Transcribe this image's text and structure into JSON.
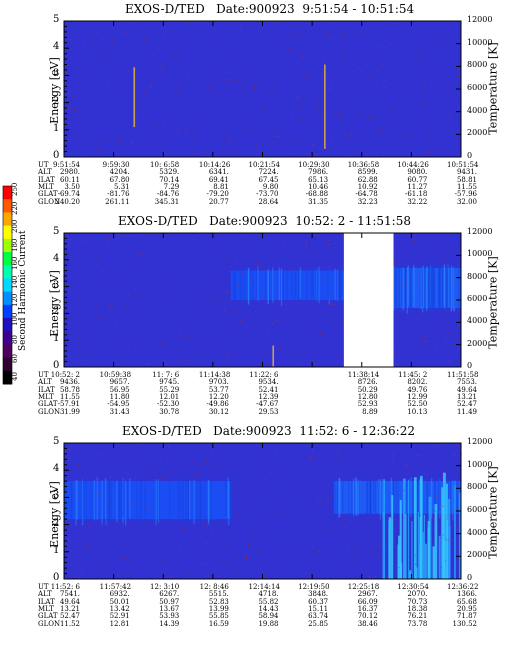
{
  "colorbar": {
    "label": "Second Harmonic Current",
    "ticks": [
      "250",
      "220",
      "200",
      "180",
      "160",
      "140",
      "120",
      "100",
      "80",
      "60",
      "40"
    ]
  },
  "panels": [
    {
      "title": "EXOS-D/TED   Date:900923  9:51:54 - 10:51:54",
      "row_labels": [
        "UT",
        "ALT",
        "ILAT",
        "MLT",
        "GLAT",
        "GLON"
      ],
      "columns": [
        [
          "9:51:54",
          "2980.",
          "60.11",
          "3.50",
          "-69.74",
          "240.20"
        ],
        [
          "9:59:30",
          "4204.",
          "67.80",
          "5.31",
          "-81.76",
          "261.11"
        ],
        [
          "10: 6:58",
          "5329.",
          "70.14",
          "7.29",
          "-84.76",
          "345.31"
        ],
        [
          "10:14:26",
          "6341.",
          "69.41",
          "8.81",
          "-79.20",
          "20.77"
        ],
        [
          "10:21:54",
          "7224.",
          "67.45",
          "9.80",
          "-73.70",
          "28.64"
        ],
        [
          "10:29:30",
          "7986.",
          "65.13",
          "10.46",
          "-68.88",
          "31.35"
        ],
        [
          "10:36:58",
          "8599.",
          "62.88",
          "10.92",
          "-64.78",
          "32.23"
        ],
        [
          "10:44:26",
          "9080.",
          "60.77",
          "11.27",
          "-61.18",
          "32.22"
        ],
        [
          "10:51:54",
          "9431.",
          "58.81",
          "11.55",
          "-57.96",
          "32.00"
        ]
      ]
    },
    {
      "title": "EXOS-D/TED   Date:900923  10:52: 2 - 11:51:58",
      "row_labels": [
        "UT",
        "ALT",
        "ILAT",
        "MLT",
        "GLAT",
        "GLON"
      ],
      "columns": [
        [
          "10:52: 2",
          "9436.",
          "58.78",
          "11.55",
          "-57.91",
          "31.99"
        ],
        [
          "10:59:38",
          "9657.",
          "56.95",
          "11.80",
          "-54.95",
          "31.43"
        ],
        [
          "11: 7: 6",
          "9745.",
          "55.29",
          "12.01",
          "-52.30",
          "30.78"
        ],
        [
          "11:14:38",
          "9703.",
          "53.77",
          "12.20",
          "-49.86",
          "30.12"
        ],
        [
          "11:22: 6",
          "9534.",
          "52.41",
          "12.39",
          "-47.67",
          "29.53"
        ],
        [
          "",
          "",
          "",
          "",
          "",
          ""
        ],
        [
          "11:38:14",
          "8726.",
          "50.29",
          "12.80",
          "52.93",
          "8.89"
        ],
        [
          "11:45: 2",
          "8202.",
          "49.76",
          "12.99",
          "52.50",
          "10.13"
        ],
        [
          "11:51:58",
          "7553.",
          "49.64",
          "13.21",
          "52.47",
          "11.49"
        ]
      ]
    },
    {
      "title": "EXOS-D/TED   Date:900923  11:52: 6 - 12:36:22",
      "row_labels": [
        "UT",
        "ALT",
        "ILAT",
        "MLT",
        "GLAT",
        "GLON"
      ],
      "columns": [
        [
          "11:52: 6",
          "7541.",
          "49.64",
          "13.21",
          "52.47",
          "11.52"
        ],
        [
          "11:57:42",
          "6932.",
          "50.01",
          "13.42",
          "52.91",
          "12.81"
        ],
        [
          "12: 3:10",
          "6267.",
          "50.97",
          "13.67",
          "53.93",
          "14.39"
        ],
        [
          "12: 8:46",
          "5515.",
          "52.83",
          "13.99",
          "55.85",
          "16.59"
        ],
        [
          "12:14:14",
          "4718.",
          "55.82",
          "14.43",
          "58.94",
          "19.88"
        ],
        [
          "12:19:50",
          "3848.",
          "60.37",
          "15.11",
          "63.74",
          "25.85"
        ],
        [
          "12:25:18",
          "2967.",
          "66.09",
          "16.37",
          "70.12",
          "38.46"
        ],
        [
          "12:30:54",
          "2070.",
          "70.73",
          "18.38",
          "76.21",
          "73.78"
        ],
        [
          "12:36:22",
          "1366.",
          "65.68",
          "20.95",
          "71.87",
          "130.52"
        ]
      ]
    }
  ],
  "chart_data": [
    {
      "type": "heatmap",
      "title": "EXOS-D/TED   Date:900923  9:51:54 - 10:51:54",
      "ylabel": "Energy [eV]",
      "y2label": "Temperature [K]",
      "ylim": [
        0,
        5
      ],
      "y2lim": [
        0,
        12000
      ],
      "yticks": [
        "0",
        "1",
        "2",
        "3",
        "4",
        "5"
      ],
      "y2ticks": [
        "0",
        "2000",
        "4000",
        "6000",
        "8000",
        "10000",
        "12000"
      ],
      "x_ut": [
        "9:51:54",
        "9:59:30",
        "10: 6:58",
        "10:14:26",
        "10:21:54",
        "10:29:30",
        "10:36:58",
        "10:44:26",
        "10:51:54"
      ],
      "colorbar_ticks": [
        "250",
        "220",
        "200",
        "180",
        "160",
        "140",
        "120",
        "100",
        "80",
        "60",
        "40"
      ],
      "background_color": "#3232d2",
      "bands": [],
      "streaks": [
        {
          "x_frac": 0.175,
          "y0": 1.1,
          "y1": 3.3
        },
        {
          "x_frac": 0.655,
          "y0": 0.3,
          "y1": 3.4
        }
      ],
      "data_gaps": [],
      "speckle_color": "#b03030"
    },
    {
      "type": "heatmap",
      "title": "EXOS-D/TED   Date:900923  10:52: 2 - 11:51:58",
      "ylabel": "Energy [eV]",
      "y2label": "Temperature [K]",
      "ylim": [
        0,
        5
      ],
      "y2lim": [
        0,
        12000
      ],
      "yticks": [
        "0",
        "1",
        "2",
        "3",
        "4",
        "5"
      ],
      "y2ticks": [
        "0",
        "2000",
        "4000",
        "6000",
        "8000",
        "10000",
        "12000"
      ],
      "x_ut": [
        "10:52: 2",
        "10:59:38",
        "11: 7: 6",
        "11:14:38",
        "11:22: 6",
        "",
        "11:38:14",
        "11:45: 2",
        "11:51:58"
      ],
      "colorbar_ticks": [
        "250",
        "220",
        "200",
        "180",
        "160",
        "140",
        "120",
        "100",
        "80",
        "60",
        "40"
      ],
      "background_color": "#3232d2",
      "bands": [
        {
          "x0_frac": 0.42,
          "x1_frac": 0.83,
          "y_lo": 2.5,
          "y_hi": 3.6,
          "color": "#1a4ff5"
        },
        {
          "x0_frac": 0.83,
          "x1_frac": 1.0,
          "y_lo": 2.2,
          "y_hi": 3.7,
          "color": "#1e5ef8"
        }
      ],
      "streaks": [
        {
          "x_frac": 0.525,
          "y0": 0.0,
          "y1": 0.8
        }
      ],
      "data_gaps": [
        {
          "x0_frac": 0.705,
          "x1_frac": 0.83
        }
      ],
      "speckle_color": "#b03030"
    },
    {
      "type": "heatmap",
      "title": "EXOS-D/TED   Date:900923  11:52: 6 - 12:36:22",
      "ylabel": "Energy [eV]",
      "y2label": "Temperature [K]",
      "ylim": [
        0,
        5
      ],
      "y2lim": [
        0,
        12000
      ],
      "yticks": [
        "0",
        "1",
        "2",
        "3",
        "4",
        "5"
      ],
      "y2ticks": [
        "0",
        "2000",
        "4000",
        "6000",
        "8000",
        "10000",
        "12000"
      ],
      "x_ut": [
        "11:52: 6",
        "11:57:42",
        "12: 3:10",
        "12: 8:46",
        "12:14:14",
        "12:19:50",
        "12:25:18",
        "12:30:54",
        "12:36:22"
      ],
      "colorbar_ticks": [
        "250",
        "220",
        "200",
        "180",
        "160",
        "140",
        "120",
        "100",
        "80",
        "60",
        "40"
      ],
      "background_color": "#3232d2",
      "bands": [
        {
          "x0_frac": 0.0,
          "x1_frac": 0.42,
          "y_lo": 2.2,
          "y_hi": 3.6,
          "color": "#1a4ff5"
        },
        {
          "x0_frac": 0.68,
          "x1_frac": 1.0,
          "y_lo": 2.4,
          "y_hi": 3.6,
          "color": "#1e5ef8"
        }
      ],
      "streaks": [],
      "hot_region": {
        "x0_frac": 0.8,
        "x1_frac": 1.0,
        "y_lo": 0.0,
        "y_hi": 4.2,
        "color": "#35c8ff"
      },
      "data_gaps": [],
      "speckle_color": "#b03030"
    }
  ]
}
